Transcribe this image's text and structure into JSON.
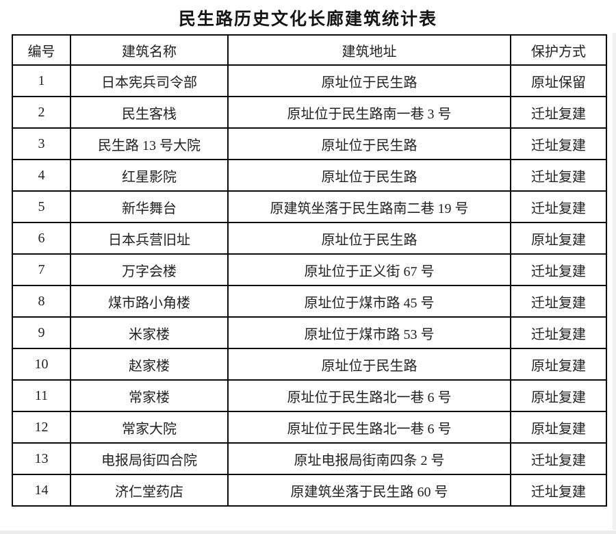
{
  "title": "民生路历史文化长廊建筑统计表",
  "table": {
    "headers": [
      "编号",
      "建筑名称",
      "建筑地址",
      "保护方式"
    ],
    "header_keys": [
      "number",
      "building-name",
      "building-address",
      "protection-method"
    ],
    "rows": [
      [
        "1",
        "日本宪兵司令部",
        "原址位于民生路",
        "原址保留"
      ],
      [
        "2",
        "民生客栈",
        "原址位于民生路南一巷 3 号",
        "迁址复建"
      ],
      [
        "3",
        "民生路 13 号大院",
        "原址位于民生路",
        "迁址复建"
      ],
      [
        "4",
        "红星影院",
        "原址位于民生路",
        "迁址复建"
      ],
      [
        "5",
        "新华舞台",
        "原建筑坐落于民生路南二巷 19 号",
        "迁址复建"
      ],
      [
        "6",
        "日本兵营旧址",
        "原址位于民生路",
        "原址复建"
      ],
      [
        "7",
        "万字会楼",
        "原址位于正义街 67 号",
        "迁址复建"
      ],
      [
        "8",
        "煤市路小角楼",
        "原址位于煤市路 45 号",
        "迁址复建"
      ],
      [
        "9",
        "米家楼",
        "原址位于煤市路 53 号",
        "迁址复建"
      ],
      [
        "10",
        "赵家楼",
        "原址位于民生路",
        "原址复建"
      ],
      [
        "11",
        "常家楼",
        "原址位于民生路北一巷 6 号",
        "原址复建"
      ],
      [
        "12",
        "常家大院",
        "原址位于民生路北一巷 6 号",
        "原址复建"
      ],
      [
        "13",
        "电报局街四合院",
        "原址电报局街南四条 2 号",
        "迁址复建"
      ],
      [
        "14",
        "济仁堂药店",
        "原建筑坐落于民生路 60 号",
        "迁址复建"
      ]
    ]
  },
  "colors": {
    "border": "#0a0a0a",
    "text": "#222222",
    "background": "#ffffff"
  }
}
